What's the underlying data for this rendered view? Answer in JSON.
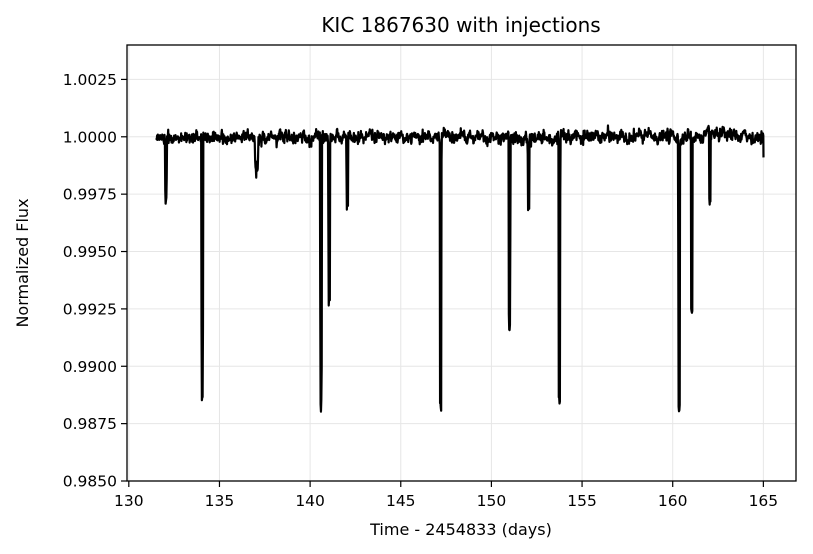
{
  "chart_data": {
    "type": "line",
    "title": "KIC 1867630 with injections",
    "xlabel": "Time - 2454833 (days)",
    "ylabel": "Normalized Flux",
    "xlim": [
      129.9,
      166.8
    ],
    "ylim": [
      0.985,
      1.004
    ],
    "x_ticks": [
      130,
      135,
      140,
      145,
      150,
      155,
      160,
      165
    ],
    "x_tick_labels": [
      "130",
      "135",
      "140",
      "145",
      "150",
      "155",
      "160",
      "165"
    ],
    "y_ticks": [
      0.985,
      0.9875,
      0.99,
      0.9925,
      0.995,
      0.9975,
      1.0,
      1.0025
    ],
    "y_tick_labels": [
      "0.9850",
      "0.9875",
      "0.9900",
      "0.9925",
      "0.9950",
      "0.9975",
      "1.0000",
      "1.0025"
    ],
    "grid": true,
    "colors": {
      "line": "#000000",
      "grid": "#e6e6e6",
      "axes": "#000000",
      "background": "#ffffff"
    },
    "series": [
      {
        "baseline": 1.0,
        "x_range": [
          131.5,
          165.0
        ],
        "transits": [
          {
            "x": 132.05,
            "depth": 0.9972,
            "width": 0.1
          },
          {
            "x": 134.05,
            "depth": 0.9887,
            "width": 0.1
          },
          {
            "x": 137.05,
            "depth": 0.9987,
            "width": 0.2
          },
          {
            "x": 140.6,
            "depth": 0.9882,
            "width": 0.1
          },
          {
            "x": 141.05,
            "depth": 0.9927,
            "width": 0.1
          },
          {
            "x": 142.05,
            "depth": 0.997,
            "width": 0.1
          },
          {
            "x": 147.2,
            "depth": 0.9883,
            "width": 0.1
          },
          {
            "x": 151.0,
            "depth": 0.9915,
            "width": 0.1
          },
          {
            "x": 152.05,
            "depth": 0.997,
            "width": 0.1
          },
          {
            "x": 153.75,
            "depth": 0.9886,
            "width": 0.1
          },
          {
            "x": 160.35,
            "depth": 0.9883,
            "width": 0.1
          },
          {
            "x": 161.05,
            "depth": 0.9925,
            "width": 0.1
          },
          {
            "x": 162.05,
            "depth": 0.9972,
            "width": 0.1
          }
        ]
      }
    ]
  }
}
